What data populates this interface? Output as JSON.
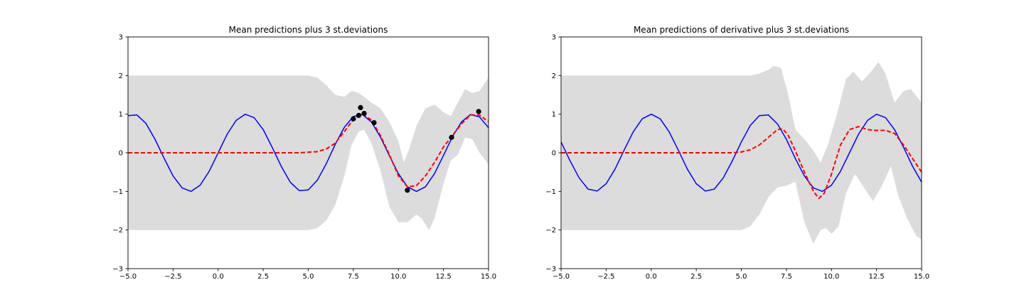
{
  "chart_data": [
    {
      "type": "line",
      "title": "Mean predictions plus 3 st.deviations",
      "xlabel": "",
      "ylabel": "",
      "xlim": [
        -5.0,
        15.0
      ],
      "ylim": [
        -3,
        3
      ],
      "xticks": [
        "−5.0",
        "−2.5",
        "0.0",
        "2.5",
        "5.0",
        "7.5",
        "10.0",
        "12.5",
        "15.0"
      ],
      "yticks": [
        "−3",
        "−2",
        "−1",
        "0",
        "1",
        "2",
        "3"
      ],
      "grid": false,
      "colors": {
        "band": "#dcdcdc",
        "truth": "#0000ff",
        "mean": "#ff0000",
        "points": "#000000"
      },
      "band_upper": [
        [
          -5,
          2
        ],
        [
          5,
          2
        ],
        [
          5.5,
          1.95
        ],
        [
          6,
          1.75
        ],
        [
          6.5,
          1.5
        ],
        [
          7,
          1.45
        ],
        [
          7.4,
          1.6
        ],
        [
          7.8,
          1.55
        ],
        [
          8.1,
          1.45
        ],
        [
          8.5,
          1.3
        ],
        [
          9,
          1.15
        ],
        [
          9.5,
          0.8
        ],
        [
          10,
          0.3
        ],
        [
          10.3,
          -0.25
        ],
        [
          10.6,
          0.1
        ],
        [
          11,
          0.7
        ],
        [
          11.5,
          1.15
        ],
        [
          12,
          1.25
        ],
        [
          12.5,
          1.05
        ],
        [
          12.9,
          0.95
        ],
        [
          13.3,
          1.3
        ],
        [
          13.7,
          1.65
        ],
        [
          14.1,
          1.55
        ],
        [
          14.5,
          1.6
        ],
        [
          15,
          1.95
        ]
      ],
      "band_lower": [
        [
          -5,
          -2
        ],
        [
          5,
          -2
        ],
        [
          5.5,
          -1.95
        ],
        [
          6,
          -1.75
        ],
        [
          6.5,
          -1.35
        ],
        [
          7,
          -0.6
        ],
        [
          7.4,
          0.2
        ],
        [
          7.8,
          0.55
        ],
        [
          8.1,
          0.6
        ],
        [
          8.5,
          0.25
        ],
        [
          9,
          -0.45
        ],
        [
          9.5,
          -1.4
        ],
        [
          10,
          -1.8
        ],
        [
          10.5,
          -1.8
        ],
        [
          11,
          -1.6
        ],
        [
          11.3,
          -1.7
        ],
        [
          11.7,
          -2.0
        ],
        [
          12,
          -1.7
        ],
        [
          12.5,
          -0.8
        ],
        [
          12.9,
          -0.2
        ],
        [
          13.3,
          -0.05
        ],
        [
          13.7,
          0.4
        ],
        [
          14.1,
          0.35
        ],
        [
          14.5,
          0.0
        ],
        [
          15,
          -0.3
        ]
      ],
      "series": [
        {
          "kind": "truth",
          "x": [
            -5.0,
            -4.5,
            -4.0,
            -3.5,
            -3.0,
            -2.5,
            -2.0,
            -1.5,
            -1.0,
            -0.5,
            0.0,
            0.5,
            1.0,
            1.5,
            2.0,
            2.5,
            3.0,
            3.5,
            4.0,
            4.5,
            5.0,
            5.5,
            6.0,
            6.5,
            7.0,
            7.5,
            8.0,
            8.5,
            9.0,
            9.5,
            10.0,
            10.5,
            11.0,
            11.5,
            12.0,
            12.5,
            13.0,
            13.5,
            14.0,
            14.5,
            15.0
          ],
          "y": [
            0.96,
            0.98,
            0.76,
            0.35,
            -0.14,
            -0.6,
            -0.91,
            -1.0,
            -0.84,
            -0.48,
            0.0,
            0.48,
            0.84,
            1.0,
            0.91,
            0.6,
            0.14,
            -0.35,
            -0.76,
            -0.98,
            -0.96,
            -0.71,
            -0.28,
            0.22,
            0.66,
            0.94,
            0.99,
            0.8,
            0.41,
            -0.08,
            -0.54,
            -0.88,
            -1.0,
            -0.88,
            -0.54,
            -0.07,
            0.42,
            0.8,
            0.99,
            0.93,
            0.65
          ]
        },
        {
          "kind": "mean",
          "x": [
            -5,
            4.5,
            5.5,
            6.0,
            6.5,
            7.0,
            7.5,
            8.0,
            8.5,
            9.0,
            9.5,
            10.0,
            10.5,
            11.0,
            11.5,
            12.0,
            12.5,
            13.0,
            13.5,
            14.0,
            14.5,
            15.0
          ],
          "y": [
            0.0,
            0.0,
            0.03,
            0.1,
            0.25,
            0.55,
            0.86,
            1.0,
            0.85,
            0.45,
            -0.05,
            -0.6,
            -0.88,
            -0.85,
            -0.6,
            -0.25,
            0.15,
            0.45,
            0.75,
            0.98,
            0.98,
            0.8
          ]
        }
      ],
      "points": [
        [
          7.5,
          0.88
        ],
        [
          7.8,
          0.97
        ],
        [
          7.9,
          1.17
        ],
        [
          8.1,
          1.02
        ],
        [
          8.65,
          0.78
        ],
        [
          10.5,
          -0.97
        ],
        [
          12.95,
          0.4
        ],
        [
          14.45,
          1.07
        ]
      ]
    },
    {
      "type": "line",
      "title": "Mean predictions of derivative plus 3 st.deviations",
      "xlabel": "",
      "ylabel": "",
      "xlim": [
        -5.0,
        15.0
      ],
      "ylim": [
        -3,
        3
      ],
      "xticks": [
        "−5.0",
        "−2.5",
        "0.0",
        "2.5",
        "5.0",
        "7.5",
        "10.0",
        "12.5",
        "15.0"
      ],
      "yticks": [
        "−3",
        "−2",
        "−1",
        "0",
        "1",
        "2",
        "3"
      ],
      "grid": false,
      "colors": {
        "band": "#dcdcdc",
        "truth": "#0000ff",
        "mean": "#ff0000",
        "points": "#000000"
      },
      "band_upper": [
        [
          -5,
          2
        ],
        [
          5,
          2
        ],
        [
          5.5,
          2.0
        ],
        [
          6,
          2.05
        ],
        [
          6.5,
          2.15
        ],
        [
          6.8,
          2.25
        ],
        [
          7.2,
          2.2
        ],
        [
          7.6,
          1.5
        ],
        [
          8,
          0.6
        ],
        [
          8.5,
          0.35
        ],
        [
          9,
          0.05
        ],
        [
          9.4,
          -0.25
        ],
        [
          9.8,
          0.2
        ],
        [
          10.3,
          1.0
        ],
        [
          10.8,
          1.9
        ],
        [
          11.2,
          2.1
        ],
        [
          11.7,
          1.85
        ],
        [
          12.2,
          2.1
        ],
        [
          12.6,
          2.35
        ],
        [
          13,
          2.05
        ],
        [
          13.5,
          1.3
        ],
        [
          14,
          1.6
        ],
        [
          14.4,
          1.65
        ],
        [
          15,
          1.3
        ]
      ],
      "band_lower": [
        [
          -5,
          -2
        ],
        [
          5,
          -2
        ],
        [
          5.5,
          -1.9
        ],
        [
          6,
          -1.6
        ],
        [
          6.5,
          -1.15
        ],
        [
          7,
          -0.9
        ],
        [
          7.5,
          -0.85
        ],
        [
          8,
          -0.75
        ],
        [
          8.5,
          -1.8
        ],
        [
          9,
          -2.35
        ],
        [
          9.4,
          -2.0
        ],
        [
          9.7,
          -1.95
        ],
        [
          10,
          -2.1
        ],
        [
          10.4,
          -1.9
        ],
        [
          10.8,
          -1.05
        ],
        [
          11.3,
          -0.55
        ],
        [
          11.8,
          -0.9
        ],
        [
          12.3,
          -1.25
        ],
        [
          12.8,
          -0.85
        ],
        [
          13.3,
          -0.35
        ],
        [
          13.7,
          -1.1
        ],
        [
          14.2,
          -1.7
        ],
        [
          14.7,
          -2.15
        ],
        [
          15,
          -2.25
        ]
      ],
      "series": [
        {
          "kind": "truth",
          "x": [
            -5.0,
            -4.5,
            -4.0,
            -3.5,
            -3.0,
            -2.5,
            -2.0,
            -1.5,
            -1.0,
            -0.5,
            0.0,
            0.5,
            1.0,
            1.5,
            2.0,
            2.5,
            3.0,
            3.5,
            4.0,
            4.5,
            5.0,
            5.5,
            6.0,
            6.5,
            7.0,
            7.5,
            8.0,
            8.5,
            9.0,
            9.5,
            10.0,
            10.5,
            11.0,
            11.5,
            12.0,
            12.5,
            13.0,
            13.5,
            14.0,
            14.5,
            15.0
          ],
          "y": [
            0.28,
            -0.21,
            -0.65,
            -0.94,
            -0.99,
            -0.8,
            -0.42,
            0.07,
            0.54,
            0.88,
            1.0,
            0.88,
            0.54,
            0.07,
            -0.42,
            -0.8,
            -0.99,
            -0.94,
            -0.65,
            -0.21,
            0.28,
            0.71,
            0.96,
            0.98,
            0.75,
            0.35,
            -0.15,
            -0.6,
            -0.91,
            -1.0,
            -0.84,
            -0.48,
            0.0,
            0.48,
            0.84,
            1.0,
            0.91,
            0.6,
            0.14,
            -0.35,
            -0.76
          ]
        },
        {
          "kind": "mean",
          "x": [
            -5,
            4.5,
            5.0,
            5.5,
            6.0,
            6.5,
            7.0,
            7.3,
            7.6,
            8.0,
            8.5,
            9.0,
            9.3,
            9.6,
            10.0,
            10.5,
            11.0,
            11.5,
            12.0,
            12.5,
            13.0,
            13.5,
            14.0,
            14.5,
            15.0
          ],
          "y": [
            0.0,
            0.0,
            0.02,
            0.08,
            0.2,
            0.4,
            0.6,
            0.62,
            0.45,
            0.05,
            -0.5,
            -1.0,
            -1.18,
            -1.05,
            -0.55,
            0.2,
            0.6,
            0.68,
            0.6,
            0.58,
            0.58,
            0.5,
            0.2,
            -0.15,
            -0.5
          ]
        }
      ],
      "points": []
    }
  ]
}
